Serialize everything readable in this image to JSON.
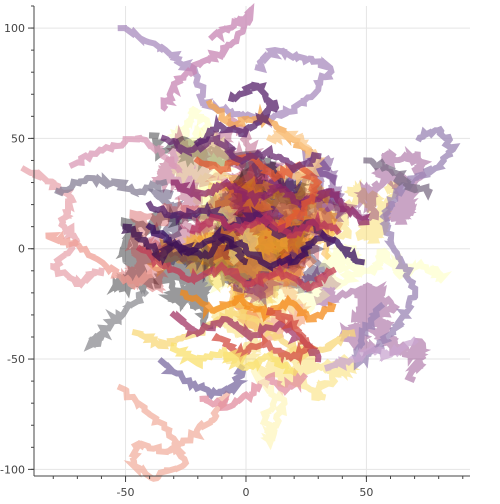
{
  "chart_data": {
    "type": "line",
    "title": "",
    "xlabel": "",
    "ylabel": "",
    "xlim": [
      -88,
      93
    ],
    "ylim": [
      -103,
      110
    ],
    "grid": true,
    "legend": "none",
    "x_ticks": [
      -50,
      0,
      50
    ],
    "y_ticks": [
      -100,
      -50,
      0,
      50,
      100
    ],
    "x_tick_labels": [
      "-50",
      "0",
      "50"
    ],
    "y_tick_labels": [
      "-100",
      "-50",
      "0",
      "50",
      "100"
    ],
    "palette": [
      "#000004",
      "#1b0c41",
      "#4a0c6b",
      "#781c6d",
      "#a52c60",
      "#cf4446",
      "#ed6925",
      "#fb9b06",
      "#f7d13d",
      "#fcffa4"
    ],
    "series_style": {
      "line_width": 6,
      "alpha": 0.4,
      "count": 30
    },
    "series": [
      {
        "color": "#f1b0a0",
        "points": [
          [
            -52,
            -63
          ],
          [
            -40,
            -75
          ],
          [
            -30,
            -86
          ],
          [
            -25,
            -97
          ],
          [
            -37,
            -104
          ],
          [
            -47,
            -98
          ],
          [
            -45,
            -88
          ],
          [
            -33,
            -92
          ],
          [
            -22,
            -84
          ],
          [
            -13,
            -77
          ],
          [
            -8,
            -66
          ]
        ]
      },
      {
        "color": "#a88bbd",
        "points": [
          [
            -52,
            100
          ],
          [
            -38,
            93
          ],
          [
            -28,
            86
          ],
          [
            -20,
            78
          ],
          [
            -18,
            66
          ],
          [
            -6,
            62
          ],
          [
            6,
            58
          ],
          [
            18,
            62
          ],
          [
            30,
            72
          ],
          [
            35,
            82
          ],
          [
            22,
            87
          ],
          [
            12,
            90
          ],
          [
            5,
            82
          ]
        ]
      },
      {
        "color": "#c784b3",
        "points": [
          [
            -14,
            96
          ],
          [
            -5,
            101
          ],
          [
            2,
            108
          ],
          [
            -4,
            94
          ],
          [
            -12,
            88
          ],
          [
            -22,
            82
          ],
          [
            -30,
            74
          ],
          [
            -34,
            64
          ]
        ]
      },
      {
        "color": "#9a84b4",
        "points": [
          [
            72,
            50
          ],
          [
            80,
            55
          ],
          [
            86,
            45
          ],
          [
            78,
            36
          ],
          [
            70,
            32
          ],
          [
            62,
            24
          ],
          [
            58,
            14
          ],
          [
            60,
            4
          ],
          [
            66,
            -8
          ],
          [
            70,
            -22
          ],
          [
            64,
            -34
          ],
          [
            56,
            -44
          ],
          [
            46,
            -52
          ],
          [
            48,
            -40
          ],
          [
            56,
            -26
          ]
        ]
      },
      {
        "color": "#e8a6ae",
        "points": [
          [
            -92,
            36
          ],
          [
            -80,
            30
          ],
          [
            -72,
            22
          ],
          [
            -76,
            12
          ],
          [
            -70,
            3
          ],
          [
            -80,
            -8
          ],
          [
            -70,
            -16
          ],
          [
            -60,
            -10
          ]
        ]
      },
      {
        "color": "#d998b5",
        "points": [
          [
            -72,
            38
          ],
          [
            -58,
            46
          ],
          [
            -45,
            50
          ],
          [
            -35,
            44
          ],
          [
            -28,
            36
          ]
        ]
      },
      {
        "color": "#ef9f96",
        "points": [
          [
            -82,
            6
          ],
          [
            -70,
            2
          ],
          [
            -58,
            -8
          ],
          [
            -48,
            -16
          ],
          [
            -40,
            -12
          ]
        ]
      },
      {
        "color": "#8c8c92",
        "points": [
          [
            -60,
            -40
          ],
          [
            -65,
            -44
          ],
          [
            -58,
            -36
          ],
          [
            -50,
            -28
          ],
          [
            -42,
            -20
          ]
        ]
      },
      {
        "color": "#857f96",
        "points": [
          [
            -78,
            26
          ],
          [
            -66,
            32
          ],
          [
            -55,
            30
          ],
          [
            -44,
            26
          ],
          [
            -34,
            30
          ]
        ]
      },
      {
        "color": "#7a6aa0",
        "points": [
          [
            -35,
            -51
          ],
          [
            -25,
            -60
          ],
          [
            -15,
            -66
          ],
          [
            -5,
            -64
          ],
          [
            -2,
            -54
          ]
        ]
      },
      {
        "color": "#e18c9f",
        "points": [
          [
            -18,
            -68
          ],
          [
            -8,
            -72
          ],
          [
            2,
            -66
          ],
          [
            10,
            -58
          ],
          [
            16,
            -64
          ],
          [
            24,
            -58
          ]
        ]
      },
      {
        "color": "#fdf6bf",
        "points": [
          [
            2,
            -52
          ],
          [
            8,
            -62
          ],
          [
            16,
            -70
          ],
          [
            12,
            -80
          ],
          [
            10,
            -88
          ],
          [
            8,
            -76
          ],
          [
            14,
            -66
          ]
        ]
      },
      {
        "color": "#f8d87a",
        "points": [
          [
            -46,
            -38
          ],
          [
            -36,
            -44
          ],
          [
            -26,
            -40
          ],
          [
            -16,
            -36
          ],
          [
            -6,
            -28
          ],
          [
            4,
            -32
          ],
          [
            14,
            -40
          ],
          [
            24,
            -48
          ],
          [
            34,
            -44
          ],
          [
            44,
            -38
          ]
        ]
      },
      {
        "color": "#c9a6d0",
        "points": [
          [
            34,
            -54
          ],
          [
            44,
            -50
          ],
          [
            52,
            -46
          ],
          [
            60,
            -48
          ],
          [
            70,
            -42
          ]
        ]
      },
      {
        "color": "#7c6e86",
        "points": [
          [
            50,
            40
          ],
          [
            60,
            36
          ],
          [
            68,
            28
          ],
          [
            76,
            26
          ]
        ]
      },
      {
        "color": "#f4a54d",
        "points": [
          [
            -15,
            66
          ],
          [
            -5,
            56
          ],
          [
            6,
            60
          ],
          [
            16,
            52
          ],
          [
            26,
            44
          ]
        ]
      },
      {
        "color": "#fbc88a",
        "points": [
          [
            10,
            50
          ],
          [
            18,
            52
          ],
          [
            24,
            48
          ],
          [
            30,
            40
          ],
          [
            22,
            32
          ],
          [
            14,
            36
          ]
        ]
      },
      {
        "color": "#320a5e",
        "points": [
          [
            -40,
            10
          ],
          [
            -32,
            4
          ],
          [
            -24,
            -2
          ],
          [
            -12,
            6
          ],
          [
            0,
            0
          ],
          [
            10,
            -8
          ],
          [
            22,
            -4
          ],
          [
            32,
            6
          ],
          [
            40,
            0
          ],
          [
            48,
            -6
          ]
        ]
      },
      {
        "color": "#8b2467",
        "points": [
          [
            -30,
            30
          ],
          [
            -20,
            24
          ],
          [
            -8,
            30
          ],
          [
            4,
            22
          ],
          [
            14,
            28
          ],
          [
            24,
            20
          ],
          [
            34,
            26
          ],
          [
            42,
            18
          ],
          [
            50,
            12
          ]
        ]
      },
      {
        "color": "#c23b55",
        "points": [
          [
            -44,
            0
          ],
          [
            -34,
            -8
          ],
          [
            -22,
            -14
          ],
          [
            -10,
            -8
          ],
          [
            2,
            -16
          ],
          [
            14,
            -10
          ],
          [
            26,
            -18
          ],
          [
            36,
            -10
          ]
        ]
      },
      {
        "color": "#e35933",
        "points": [
          [
            -20,
            40
          ],
          [
            -10,
            36
          ],
          [
            2,
            42
          ],
          [
            12,
            32
          ],
          [
            22,
            38
          ],
          [
            30,
            30
          ],
          [
            24,
            18
          ],
          [
            14,
            10
          ]
        ]
      },
      {
        "color": "#f48918",
        "points": [
          [
            -26,
            -20
          ],
          [
            -14,
            -28
          ],
          [
            -2,
            -22
          ],
          [
            8,
            -30
          ],
          [
            18,
            -24
          ],
          [
            28,
            -32
          ],
          [
            36,
            -26
          ]
        ]
      },
      {
        "color": "#4d1a65",
        "points": [
          [
            -40,
            20
          ],
          [
            -28,
            14
          ],
          [
            -16,
            18
          ],
          [
            -6,
            10
          ],
          [
            4,
            16
          ],
          [
            14,
            6
          ],
          [
            26,
            12
          ],
          [
            36,
            4
          ]
        ]
      },
      {
        "color": "#a33665",
        "points": [
          [
            -30,
            -30
          ],
          [
            -20,
            -38
          ],
          [
            -8,
            -32
          ],
          [
            2,
            -40
          ],
          [
            14,
            -34
          ],
          [
            24,
            -42
          ],
          [
            30,
            -50
          ]
        ]
      },
      {
        "color": "#6a2a70",
        "points": [
          [
            -34,
            50
          ],
          [
            -24,
            44
          ],
          [
            -12,
            50
          ],
          [
            -2,
            40
          ],
          [
            10,
            44
          ],
          [
            20,
            36
          ],
          [
            30,
            42
          ]
        ]
      },
      {
        "color": "#3b1050",
        "points": [
          [
            -50,
            10
          ],
          [
            -42,
            4
          ],
          [
            -36,
            -4
          ],
          [
            -28,
            2
          ],
          [
            -18,
            -4
          ],
          [
            -8,
            4
          ],
          [
            0,
            -6
          ]
        ]
      },
      {
        "color": "#d34b40",
        "points": [
          [
            -12,
            -40
          ],
          [
            -2,
            -48
          ],
          [
            8,
            -42
          ],
          [
            18,
            -50
          ],
          [
            26,
            -44
          ],
          [
            20,
            -34
          ],
          [
            10,
            -28
          ]
        ]
      },
      {
        "color": "#fae06c",
        "points": [
          [
            -30,
            -44
          ],
          [
            -20,
            -52
          ],
          [
            -10,
            -46
          ],
          [
            0,
            -54
          ],
          [
            10,
            -48
          ],
          [
            20,
            -56
          ]
        ]
      },
      {
        "color": "#562069",
        "points": [
          [
            -6,
            68
          ],
          [
            4,
            74
          ],
          [
            12,
            66
          ],
          [
            6,
            58
          ],
          [
            -2,
            52
          ],
          [
            -12,
            56
          ],
          [
            -20,
            48
          ]
        ]
      },
      {
        "color": "#b5305c",
        "points": [
          [
            -22,
            8
          ],
          [
            -12,
            14
          ],
          [
            -2,
            8
          ],
          [
            8,
            14
          ],
          [
            18,
            6
          ],
          [
            28,
            12
          ],
          [
            38,
            8
          ]
        ]
      }
    ]
  }
}
